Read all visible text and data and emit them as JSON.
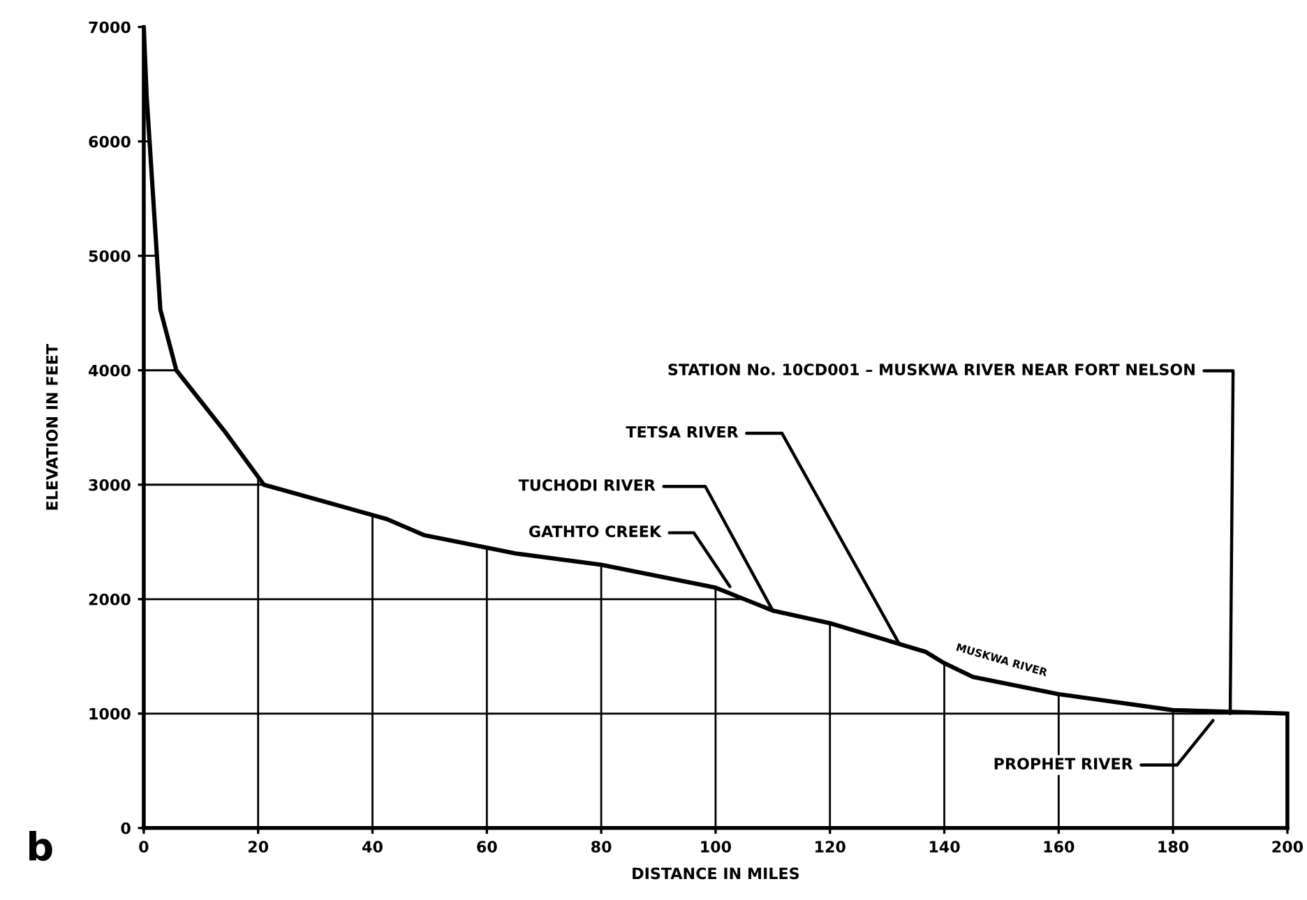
{
  "chart_data": {
    "type": "line",
    "xlabel": "DISTANCE IN MILES",
    "ylabel": "ELEVATION IN FEET",
    "x": [
      0,
      0.5,
      2.9,
      5.7,
      14.4,
      21,
      42.5,
      49,
      60,
      65,
      80,
      100,
      105,
      110,
      120,
      136.7,
      140,
      145,
      160,
      180,
      200
    ],
    "series": [
      {
        "color": "#000000",
        "values": [
          7000,
          6400,
          4530,
          4000,
          3450,
          3000,
          2700,
          2560,
          2450,
          2400,
          2300,
          2100,
          2000,
          1900,
          1790,
          1540,
          1440,
          1320,
          1170,
          1030,
          1000
        ]
      }
    ],
    "xlim": [
      0,
      200
    ],
    "ylim": [
      0,
      7000
    ],
    "xticks": [
      0,
      20,
      40,
      60,
      80,
      100,
      120,
      140,
      160,
      180,
      200
    ],
    "yticks": [
      0,
      1000,
      2000,
      3000,
      4000,
      5000,
      6000,
      7000
    ],
    "grid": true,
    "marker": "none",
    "line_style": "solid",
    "annotations": [
      {
        "text": "STATION No. 10CD001 – MUSKWA RIVER NEAR FORT NELSON",
        "x": 190,
        "y": 1000
      },
      {
        "text": "TETSA RIVER",
        "x": 132,
        "y": 1620
      },
      {
        "text": "TUCHODI RIVER",
        "x": 110,
        "y": 1900
      },
      {
        "text": "GATHTO CREEK",
        "x": 102.5,
        "y": 2110
      },
      {
        "text": "PROPHET RIVER",
        "x": 187,
        "y": 940
      },
      {
        "text": "MUSKWA RIVER",
        "x": 150,
        "y": 1260
      },
      "b"
    ]
  }
}
